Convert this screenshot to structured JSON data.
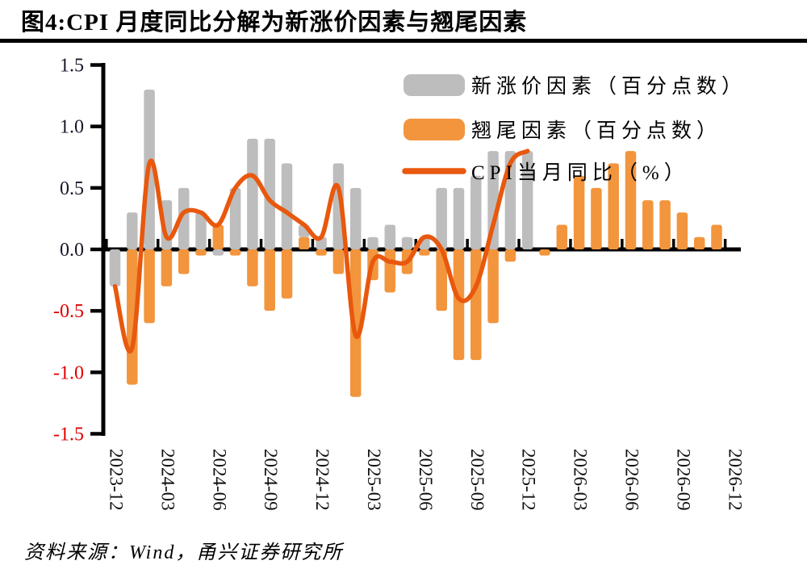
{
  "title": "图4:CPI 月度同比分解为新涨价因素与翘尾因素",
  "source": "资料来源：Wind，甬兴证券研究所",
  "colors": {
    "new_price_bar": "#BDBDBD",
    "carryover_bar": "#F2953D",
    "cpi_line": "#E8580D",
    "axis": "#000000",
    "y_label_positive": "#17172B",
    "y_label_negative": "#E00000",
    "x_label": "#111111",
    "legend_text": "#000000"
  },
  "chart_data": {
    "type": "bar",
    "subtype": "stacked bars + smooth line combo",
    "stacked": true,
    "grid": false,
    "legend_position": "top-right-inside",
    "ylim": [
      -1.5,
      1.5
    ],
    "ytick_step": 0.5,
    "y_tick_labels": [
      "1.5",
      "1.0",
      "0.5",
      "0.0",
      "-0.5",
      "-1.0",
      "-1.5"
    ],
    "x_axis_tick_labels": [
      "2023-12",
      "2024-03",
      "2024-06",
      "2024-09",
      "2024-12",
      "2025-03",
      "2025-06",
      "2025-09",
      "2025-12",
      "2026-03",
      "2026-06",
      "2026-09",
      "2026-12"
    ],
    "months": [
      "2023-12",
      "2024-01",
      "2024-02",
      "2024-03",
      "2024-04",
      "2024-05",
      "2024-06",
      "2024-07",
      "2024-08",
      "2024-09",
      "2024-10",
      "2024-11",
      "2024-12",
      "2025-01",
      "2025-02",
      "2025-03",
      "2025-04",
      "2025-05",
      "2025-06",
      "2025-07",
      "2025-08",
      "2025-09",
      "2025-10",
      "2025-11",
      "2025-12",
      "2026-01",
      "2026-02",
      "2026-03",
      "2026-04",
      "2026-05",
      "2026-06",
      "2026-07",
      "2026-08",
      "2026-09",
      "2026-10",
      "2026-11",
      "2026-12"
    ],
    "series": [
      {
        "name": "新涨价因素（百分点数）",
        "type": "bar",
        "color": "#BDBDBD",
        "values": [
          -0.3,
          0.3,
          1.3,
          0.4,
          0.5,
          0.3,
          -0.05,
          0.5,
          0.9,
          0.9,
          0.7,
          0.1,
          0.1,
          0.7,
          0.5,
          0.1,
          0.2,
          0.1,
          0.1,
          0.5,
          0.5,
          0.6,
          0.8,
          0.8,
          0.8,
          null,
          null,
          null,
          null,
          null,
          null,
          null,
          null,
          null,
          null,
          null,
          null
        ]
      },
      {
        "name": "翘尾因素（百分点数）",
        "type": "bar",
        "color": "#F2953D",
        "values": [
          0,
          -1.1,
          -0.6,
          -0.3,
          -0.2,
          -0.05,
          0.2,
          -0.05,
          -0.3,
          -0.5,
          -0.4,
          0.1,
          -0.05,
          -0.2,
          -1.2,
          -0.25,
          -0.35,
          -0.2,
          -0.05,
          -0.5,
          -0.9,
          -0.9,
          -0.6,
          -0.1,
          0,
          -0.05,
          0.2,
          0.6,
          0.5,
          0.7,
          0.8,
          0.4,
          0.4,
          0.3,
          0.1,
          0.2,
          0
        ]
      },
      {
        "name": "CPI当月同比（%）",
        "type": "line",
        "color": "#E8580D",
        "values": [
          -0.3,
          -0.8,
          0.7,
          0.1,
          0.3,
          0.3,
          0.2,
          0.5,
          0.6,
          0.4,
          0.3,
          0.2,
          0.1,
          0.5,
          -0.7,
          -0.1,
          -0.1,
          -0.1,
          0.1,
          0.0,
          -0.4,
          -0.3,
          0.2,
          0.7,
          0.8,
          null,
          null,
          null,
          null,
          null,
          null,
          null,
          null,
          null,
          null,
          null,
          null
        ]
      }
    ]
  }
}
